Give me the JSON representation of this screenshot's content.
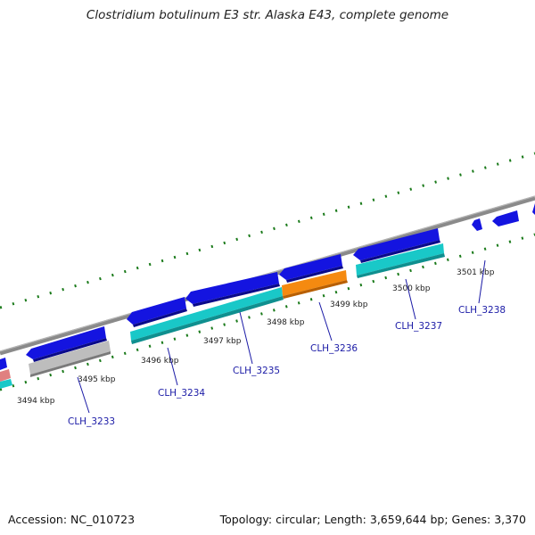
{
  "title": "Clostridium botulinum E3 str. Alaska E43, complete genome",
  "accession": "Accession: NC_010723",
  "summary": "Topology: circular; Length: 3,659,644 bp; Genes: 3,370",
  "colors": {
    "backbone": "#8a8a8a",
    "tick_green": "#1a7a1a",
    "cds_blue": "#1414e0",
    "gene_cyan": "#19c8c8",
    "gene_gray": "#bdbdbd",
    "gene_orange": "#f58a10",
    "gene_pink": "#e08080",
    "label_blue": "#1a1aa6"
  },
  "ticks": [
    {
      "label": "3494 kbp"
    },
    {
      "label": "3495 kbp"
    },
    {
      "label": "3496 kbp"
    },
    {
      "label": "3497 kbp"
    },
    {
      "label": "3498 kbp"
    },
    {
      "label": "3499 kbp"
    },
    {
      "label": "3500 kbp"
    },
    {
      "label": "3501 kbp"
    }
  ],
  "genes": [
    {
      "label": "CLH_3233"
    },
    {
      "label": "CLH_3234"
    },
    {
      "label": "CLH_3235"
    },
    {
      "label": "CLH_3236"
    },
    {
      "label": "CLH_3237"
    },
    {
      "label": "CLH_3238"
    }
  ]
}
